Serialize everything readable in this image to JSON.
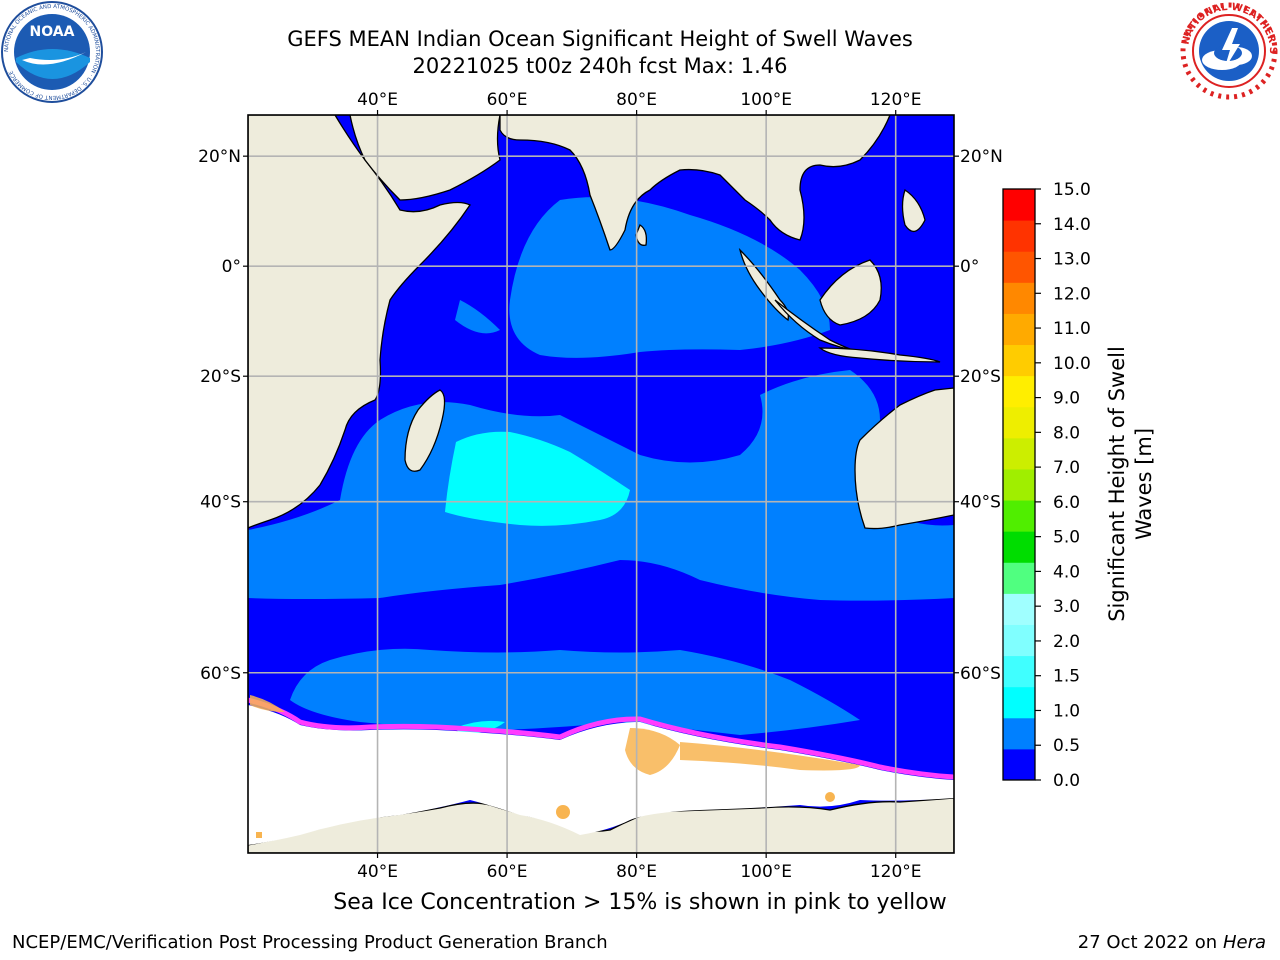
{
  "header": {
    "title_line1": "GEFS MEAN Indian Ocean Significant Height of Swell Waves",
    "title_line2": "20221025 t00z 240h fcst   Max: 1.46"
  },
  "logos": {
    "left": "noara-logo",
    "left_text": "NATIONAL OCEANIC AND ATMOSPHERIC ADMINISTRATION · U.S. DEPARTMENT OF COMMERCE",
    "left_center": "NOAA",
    "right": "nws-logo",
    "right_text": "NATIONAL WEATHER SERVICE"
  },
  "map": {
    "lon_labels": [
      "40°E",
      "60°E",
      "80°E",
      "100°E",
      "120°E"
    ],
    "lat_labels": [
      "20°N",
      "0°",
      "20°S",
      "40°S",
      "60°S"
    ],
    "lon_range": [
      20,
      129
    ],
    "lat_range": [
      -73,
      27
    ],
    "colors": {
      "land": "#eeecdc",
      "ice": "#ffffff",
      "grid": "#b4b4b4",
      "swell_0_05": "#0000ff",
      "swell_05_10": "#0080ff",
      "swell_10_15": "#00ffff",
      "sea_ice_low": "#ff3cff",
      "sea_ice_high": "#f8b450"
    }
  },
  "colorbar": {
    "label_line1": "Significant Height of Swell",
    "label_line2": "Waves [m]",
    "ticks": [
      "0.0",
      "0.5",
      "1.0",
      "1.5",
      "2.0",
      "3.0",
      "4.0",
      "5.0",
      "6.0",
      "7.0",
      "8.0",
      "9.0",
      "10.0",
      "11.0",
      "12.0",
      "13.0",
      "14.0",
      "15.0"
    ],
    "colors": [
      "#0000ff",
      "#0080ff",
      "#00ffff",
      "#40ffff",
      "#80ffff",
      "#a0ffff",
      "#50ff80",
      "#00dd00",
      "#50ee00",
      "#a0ee00",
      "#ccee00",
      "#eeee00",
      "#ffee00",
      "#ffcc00",
      "#ffaa00",
      "#ff8800",
      "#ff5500",
      "#ff3300",
      "#ff0000"
    ]
  },
  "caption": "Sea Ice Concentration > 15% is shown in pink to yellow",
  "footer": {
    "left": "NCEP/EMC/Verification Post Processing Product Generation Branch",
    "right_date": "27 Oct 2022 on ",
    "right_host": "Hera"
  }
}
